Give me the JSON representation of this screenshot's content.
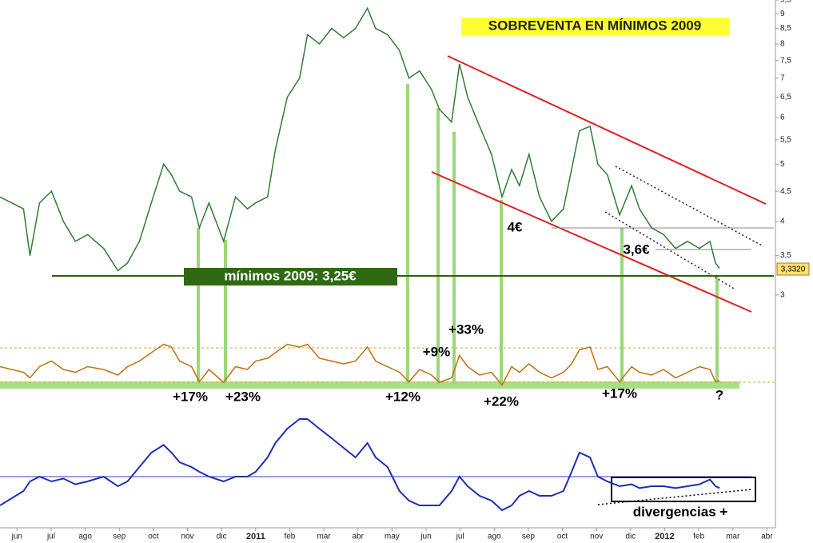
{
  "chart_data": {
    "type": "line",
    "title": "SOBREVENTA EN MÍNIMOS 2009",
    "log_y": true,
    "x": [
      -0.5,
      0.19,
      0.38,
      0.66,
      1.01,
      1.36,
      1.71,
      2.07,
      2.54,
      2.96,
      3.24,
      3.59,
      3.94,
      4.3,
      4.53,
      4.77,
      5.12,
      5.35,
      5.63,
      6.06,
      6.41,
      6.76,
      7.0,
      7.35,
      7.58,
      7.93,
      8.29,
      8.52,
      8.87,
      9.23,
      9.58,
      9.93,
      10.28,
      10.52,
      10.87,
      11.22,
      11.5,
      11.81,
      12.16,
      12.39,
      12.75,
      12.98,
      13.22,
      13.57,
      13.92,
      14.23,
      14.51,
      14.74,
      15.02,
      15.33,
      15.68,
      16.03,
      16.27,
      16.5,
      16.81,
      17.04,
      17.32,
      17.68,
      18.03,
      18.26,
      18.62,
      18.97,
      19.32,
      19.67,
      20.02,
      20.33,
      20.49,
      20.61
    ],
    "xlim": [
      -0.5,
      22.25
    ],
    "xticks": [
      {
        "value": 0,
        "label": "jun"
      },
      {
        "value": 1,
        "label": "jul"
      },
      {
        "value": 2,
        "label": "ago"
      },
      {
        "value": 3,
        "label": "sep"
      },
      {
        "value": 4,
        "label": "oct"
      },
      {
        "value": 5,
        "label": "nov"
      },
      {
        "value": 6,
        "label": "dic"
      },
      {
        "value": 7,
        "label": "2011"
      },
      {
        "value": 8,
        "label": "feb"
      },
      {
        "value": 9,
        "label": "mar"
      },
      {
        "value": 10,
        "label": "abr"
      },
      {
        "value": 11,
        "label": "may"
      },
      {
        "value": 12,
        "label": "jun"
      },
      {
        "value": 13,
        "label": "jul"
      },
      {
        "value": 14,
        "label": "ago"
      },
      {
        "value": 15,
        "label": "sep"
      },
      {
        "value": 16,
        "label": "oct"
      },
      {
        "value": 17,
        "label": "nov"
      },
      {
        "value": 18,
        "label": "dic"
      },
      {
        "value": 19,
        "label": "2012"
      },
      {
        "value": 20,
        "label": "feb"
      },
      {
        "value": 21,
        "label": "mar"
      },
      {
        "value": 22,
        "label": "abr"
      }
    ],
    "ylim": [
      2.8,
      9.5
    ],
    "yticks": [
      3,
      {
        "value": 3.5,
        "label": "3,5"
      },
      4,
      {
        "value": 4.5,
        "label": "4,5"
      },
      5,
      {
        "value": 5.5,
        "label": "5,5"
      },
      6,
      {
        "value": 6.5,
        "label": "6,5"
      },
      7,
      {
        "value": 7.5,
        "label": "7,5"
      },
      8,
      {
        "value": 8.5,
        "label": "8,5"
      },
      9,
      {
        "value": 9.5,
        "label": "9,5"
      }
    ],
    "series": [
      {
        "color": "#2e7d32",
        "values": [
          4.4,
          4.2,
          3.5,
          4.3,
          4.5,
          4.0,
          3.7,
          3.8,
          3.6,
          3.3,
          3.4,
          3.7,
          4.3,
          5.0,
          4.8,
          4.5,
          4.4,
          3.9,
          4.3,
          3.7,
          4.4,
          4.2,
          4.3,
          4.4,
          5.3,
          6.5,
          7.0,
          8.3,
          8.0,
          8.5,
          8.2,
          8.5,
          9.2,
          8.5,
          8.3,
          7.8,
          7.0,
          7.2,
          6.7,
          6.2,
          5.9,
          7.4,
          6.5,
          5.8,
          5.2,
          4.4,
          4.9,
          4.6,
          5.2,
          4.4,
          4.0,
          4.2,
          4.9,
          5.7,
          5.8,
          5.0,
          4.8,
          4.1,
          4.6,
          4.2,
          3.9,
          3.8,
          3.6,
          3.7,
          3.6,
          3.7,
          3.4,
          3.33
        ]
      }
    ],
    "oscillator": {
      "ylim": [
        0,
        100
      ],
      "series": [
        {
          "color": "#c07010",
          "values": [
            45,
            35,
            25,
            45,
            55,
            40,
            35,
            45,
            40,
            30,
            45,
            55,
            70,
            85,
            80,
            55,
            45,
            18,
            40,
            17,
            45,
            40,
            55,
            60,
            70,
            85,
            80,
            85,
            60,
            55,
            50,
            55,
            80,
            55,
            45,
            35,
            18,
            40,
            30,
            17,
            25,
            65,
            45,
            30,
            35,
            12,
            45,
            35,
            50,
            35,
            25,
            35,
            50,
            75,
            80,
            40,
            45,
            18,
            45,
            35,
            30,
            40,
            25,
            35,
            45,
            40,
            18,
            20
          ]
        }
      ]
    },
    "macd": {
      "ylim": [
        -0.7,
        0.7
      ],
      "series": [
        {
          "color": "#1f2fb0",
          "values": [
            -0.3,
            -0.15,
            -0.05,
            0.0,
            -0.05,
            -0.02,
            -0.08,
            -0.05,
            0.0,
            -0.1,
            -0.05,
            0.1,
            0.25,
            0.33,
            0.25,
            0.15,
            0.1,
            0.05,
            0.0,
            -0.05,
            0.0,
            0.0,
            0.05,
            0.2,
            0.35,
            0.5,
            0.6,
            0.6,
            0.5,
            0.4,
            0.3,
            0.2,
            0.35,
            0.2,
            0.1,
            -0.15,
            -0.25,
            -0.3,
            -0.3,
            -0.3,
            -0.15,
            0.0,
            -0.1,
            -0.2,
            -0.25,
            -0.35,
            -0.3,
            -0.2,
            -0.15,
            -0.2,
            -0.2,
            -0.15,
            0.05,
            0.25,
            0.2,
            0.0,
            -0.05,
            -0.1,
            -0.08,
            -0.12,
            -0.1,
            -0.1,
            -0.12,
            -0.1,
            -0.08,
            -0.03,
            -0.1,
            -0.12
          ]
        }
      ]
    },
    "annotations": [
      "mínimos 2009: 3,25€",
      "4€",
      "3,6€",
      "3,3320",
      "+17%",
      "+23%",
      "+12%",
      "+9%",
      "+33%",
      "+22%",
      "+17%",
      "?",
      "divergencias +"
    ]
  }
}
